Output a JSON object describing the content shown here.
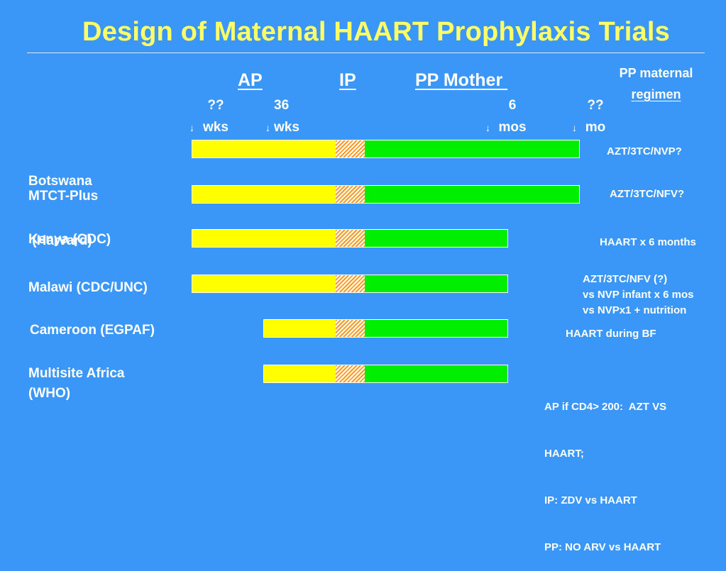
{
  "title": "Design of Maternal HAART Prophylaxis Trials",
  "phases": {
    "ap": "AP",
    "ip": "IP",
    "pp": "PP Mother "
  },
  "markers": [
    {
      "top": "??",
      "bottom": "wks"
    },
    {
      "top": "36",
      "bottom": "wks"
    },
    {
      "top": "6",
      "bottom": "mos"
    },
    {
      "top": "??",
      "bottom": "mo"
    }
  ],
  "arrow_glyph": "↓",
  "pp_maternal_header": {
    "line1": "PP maternal",
    "line2": "regimen"
  },
  "colors": {
    "background": "#3a97f7",
    "title": "#ffff66",
    "antepartum": "#ffff00",
    "intrapartum": "#ff9a1e",
    "postpartum": "#00ee00"
  },
  "trials": [
    {
      "label_lines": [
        "Botswana",
        " (Harvard)"
      ],
      "regimen_lines": [
        "AZT/3TC/NVP?"
      ]
    },
    {
      "label_lines": [
        "MTCT-Plus"
      ],
      "regimen_lines": [
        "AZT/3TC/NFV?"
      ]
    },
    {
      "label_lines": [
        "Kenya (CDC)"
      ],
      "regimen_lines": [
        "HAART x 6 months"
      ]
    },
    {
      "label_lines": [
        "Malawi (CDC/UNC)"
      ],
      "regimen_lines": [
        "AZT/3TC/NFV (?)",
        "vs NVP infant x 6 mos",
        "vs NVPx1 + nutrition"
      ]
    },
    {
      "label_lines": [
        "Cameroon (EGPAF)"
      ],
      "regimen_lines": [
        "HAART during BF"
      ]
    },
    {
      "label_lines": [
        "Multisite Africa",
        "(WHO)"
      ],
      "regimen_lines": [
        "AP if CD4> 200:  AZT VS",
        "HAART;",
        "IP: ZDV vs HAART",
        "PP: NO ARV vs HAART"
      ]
    }
  ]
}
